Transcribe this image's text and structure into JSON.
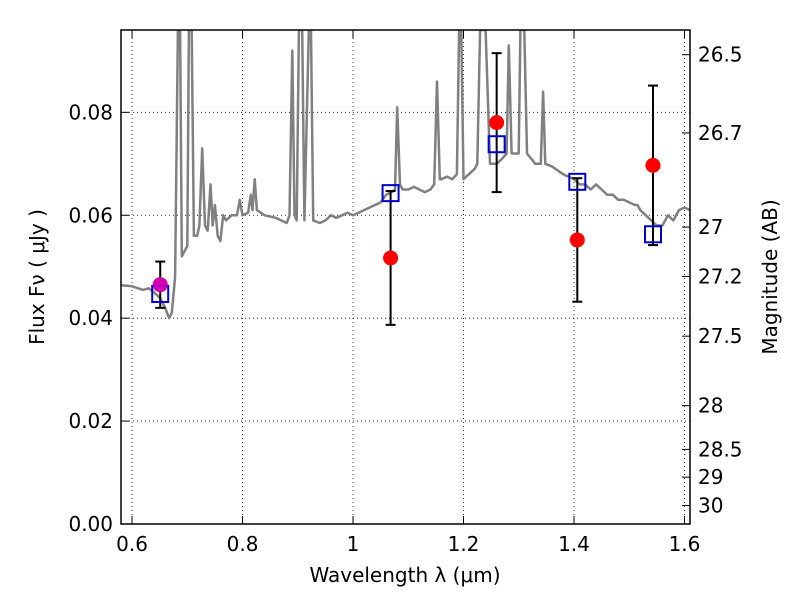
{
  "chart_data": {
    "type": "scatter",
    "xlabel": "Wavelength  λ (μm)",
    "ylabel": "Flux  Fν  ( μJy )",
    "y2label": "Magnitude (AB)",
    "xlim": [
      0.58,
      1.61
    ],
    "ylim": [
      0.0,
      0.096
    ],
    "x_ticks": [
      0.6,
      0.8,
      1.0,
      1.2,
      1.4,
      1.6
    ],
    "x_tick_labels": [
      "0.6",
      "0.8",
      "1",
      "1.2",
      "1.4",
      "1.6"
    ],
    "y_ticks": [
      0.0,
      0.02,
      0.04,
      0.06,
      0.08
    ],
    "y_tick_labels": [
      "0.00",
      "0.02",
      "0.04",
      "0.06",
      "0.08"
    ],
    "y2_ticks": [
      {
        "label": "26.5",
        "flux": 0.0912
      },
      {
        "label": "26.7",
        "flux": 0.076
      },
      {
        "label": "27",
        "flux": 0.0577
      },
      {
        "label": "27.2",
        "flux": 0.0481
      },
      {
        "label": "27.5",
        "flux": 0.0365
      },
      {
        "label": "28",
        "flux": 0.023
      },
      {
        "label": "28.5",
        "flux": 0.0145
      },
      {
        "label": "29",
        "flux": 0.0091
      },
      {
        "label": "30",
        "flux": 0.0036
      }
    ],
    "grid": true,
    "series": [
      {
        "type": "line",
        "color": "#808080",
        "points": [
          [
            0.58,
            0.0464
          ],
          [
            0.6,
            0.0462
          ],
          [
            0.62,
            0.0455
          ],
          [
            0.63,
            0.0458
          ],
          [
            0.64,
            0.045
          ],
          [
            0.65,
            0.044
          ],
          [
            0.66,
            0.042
          ],
          [
            0.667,
            0.04
          ],
          [
            0.672,
            0.041
          ],
          [
            0.678,
            0.048
          ],
          [
            0.683,
            0.096
          ],
          [
            0.687,
            0.096
          ],
          [
            0.69,
            0.052
          ],
          [
            0.695,
            0.053
          ],
          [
            0.7,
            0.054
          ],
          [
            0.703,
            0.096
          ],
          [
            0.708,
            0.096
          ],
          [
            0.712,
            0.056
          ],
          [
            0.718,
            0.056
          ],
          [
            0.722,
            0.058
          ],
          [
            0.727,
            0.073
          ],
          [
            0.732,
            0.058
          ],
          [
            0.737,
            0.057
          ],
          [
            0.742,
            0.066
          ],
          [
            0.746,
            0.058
          ],
          [
            0.75,
            0.062
          ],
          [
            0.755,
            0.056
          ],
          [
            0.76,
            0.055
          ],
          [
            0.765,
            0.06
          ],
          [
            0.77,
            0.059
          ],
          [
            0.78,
            0.06
          ],
          [
            0.79,
            0.06
          ],
          [
            0.795,
            0.063
          ],
          [
            0.8,
            0.06
          ],
          [
            0.81,
            0.0605
          ],
          [
            0.815,
            0.064
          ],
          [
            0.818,
            0.061
          ],
          [
            0.822,
            0.067
          ],
          [
            0.826,
            0.061
          ],
          [
            0.84,
            0.06
          ],
          [
            0.86,
            0.0595
          ],
          [
            0.88,
            0.0585
          ],
          [
            0.885,
            0.06
          ],
          [
            0.89,
            0.092
          ],
          [
            0.894,
            0.06
          ],
          [
            0.898,
            0.059
          ],
          [
            0.902,
            0.096
          ],
          [
            0.908,
            0.096
          ],
          [
            0.912,
            0.059
          ],
          [
            0.92,
            0.096
          ],
          [
            0.924,
            0.096
          ],
          [
            0.928,
            0.059
          ],
          [
            0.94,
            0.0585
          ],
          [
            0.95,
            0.059
          ],
          [
            0.96,
            0.06
          ],
          [
            0.97,
            0.0595
          ],
          [
            0.98,
            0.06
          ],
          [
            0.99,
            0.0605
          ],
          [
            1.0,
            0.06
          ],
          [
            1.01,
            0.0605
          ],
          [
            1.02,
            0.061
          ],
          [
            1.03,
            0.0615
          ],
          [
            1.04,
            0.062
          ],
          [
            1.05,
            0.0625
          ],
          [
            1.06,
            0.064
          ],
          [
            1.07,
            0.0645
          ],
          [
            1.076,
            0.065
          ],
          [
            1.08,
            0.081
          ],
          [
            1.085,
            0.066
          ],
          [
            1.09,
            0.065
          ],
          [
            1.1,
            0.065
          ],
          [
            1.11,
            0.0655
          ],
          [
            1.12,
            0.065
          ],
          [
            1.13,
            0.0645
          ],
          [
            1.14,
            0.065
          ],
          [
            1.147,
            0.066
          ],
          [
            1.152,
            0.086
          ],
          [
            1.157,
            0.067
          ],
          [
            1.16,
            0.067
          ],
          [
            1.17,
            0.0675
          ],
          [
            1.18,
            0.067
          ],
          [
            1.188,
            0.068
          ],
          [
            1.192,
            0.096
          ],
          [
            1.196,
            0.096
          ],
          [
            1.2,
            0.067
          ],
          [
            1.21,
            0.068
          ],
          [
            1.22,
            0.069
          ],
          [
            1.225,
            0.07
          ],
          [
            1.23,
            0.096
          ],
          [
            1.24,
            0.096
          ],
          [
            1.248,
            0.07
          ],
          [
            1.26,
            0.07
          ],
          [
            1.27,
            0.071
          ],
          [
            1.278,
            0.072
          ],
          [
            1.282,
            0.093
          ],
          [
            1.287,
            0.072
          ],
          [
            1.3,
            0.072
          ],
          [
            1.303,
            0.096
          ],
          [
            1.31,
            0.096
          ],
          [
            1.315,
            0.072
          ],
          [
            1.33,
            0.07
          ],
          [
            1.34,
            0.07
          ],
          [
            1.344,
            0.084
          ],
          [
            1.348,
            0.07
          ],
          [
            1.36,
            0.0695
          ],
          [
            1.38,
            0.068
          ],
          [
            1.4,
            0.067
          ],
          [
            1.41,
            0.066
          ],
          [
            1.42,
            0.066
          ],
          [
            1.43,
            0.065
          ],
          [
            1.44,
            0.066
          ],
          [
            1.45,
            0.065
          ],
          [
            1.46,
            0.064
          ],
          [
            1.47,
            0.064
          ],
          [
            1.48,
            0.063
          ],
          [
            1.49,
            0.063
          ],
          [
            1.5,
            0.0625
          ],
          [
            1.51,
            0.062
          ],
          [
            1.515,
            0.062
          ],
          [
            1.52,
            0.061
          ],
          [
            1.53,
            0.06
          ],
          [
            1.54,
            0.059
          ],
          [
            1.55,
            0.058
          ],
          [
            1.56,
            0.058
          ],
          [
            1.57,
            0.06
          ],
          [
            1.58,
            0.059
          ],
          [
            1.59,
            0.061
          ],
          [
            1.6,
            0.0615
          ],
          [
            1.61,
            0.061
          ]
        ]
      },
      {
        "type": "scatter",
        "marker": "circle",
        "color": "#ff0000",
        "points": [
          {
            "x": 0.651,
            "y": 0.0465,
            "err": 0.0045
          },
          {
            "x": 1.068,
            "y": 0.0517,
            "err": 0.013
          },
          {
            "x": 1.26,
            "y": 0.078,
            "err": 0.0135
          },
          {
            "x": 1.406,
            "y": 0.0552,
            "err": 0.012
          },
          {
            "x": 1.543,
            "y": 0.0697,
            "err": 0.0155
          }
        ]
      },
      {
        "type": "scatter",
        "marker": "square-open",
        "color": "#0000cc",
        "points": [
          {
            "x": 0.651,
            "y": 0.0447
          },
          {
            "x": 1.068,
            "y": 0.0643
          },
          {
            "x": 1.26,
            "y": 0.0738
          },
          {
            "x": 1.406,
            "y": 0.0665
          },
          {
            "x": 1.543,
            "y": 0.0563
          }
        ]
      }
    ]
  }
}
